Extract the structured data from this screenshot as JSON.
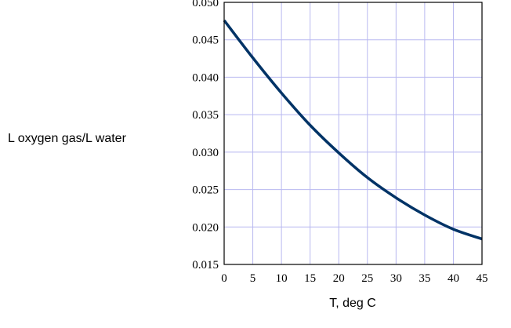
{
  "chart_data": {
    "type": "line",
    "title": "",
    "xlabel": "T, deg C",
    "ylabel": "L oxygen gas/L water",
    "xlim": [
      0,
      45
    ],
    "ylim": [
      0.015,
      0.05
    ],
    "xticks": [
      "0",
      "5",
      "10",
      "15",
      "20",
      "25",
      "30",
      "35",
      "40",
      "45"
    ],
    "yticks": [
      "0.015",
      "0.020",
      "0.025",
      "0.030",
      "0.035",
      "0.040",
      "0.045",
      "0.050"
    ],
    "grid": true,
    "colors": {
      "line": "#003366",
      "grid": "#b8b8f0"
    },
    "series": [
      {
        "x": [
          0,
          5,
          10,
          15,
          20,
          25,
          30,
          35,
          40,
          45
        ],
        "y": [
          0.0476,
          0.0426,
          0.0379,
          0.0336,
          0.0299,
          0.0266,
          0.0239,
          0.0216,
          0.0197,
          0.0184
        ]
      }
    ]
  }
}
